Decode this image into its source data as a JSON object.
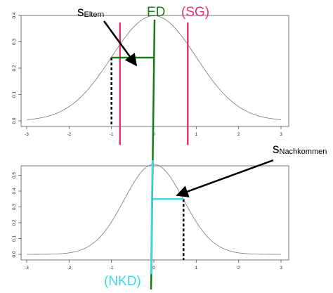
{
  "labels": {
    "ed": "ED",
    "sg": "(SG)",
    "nkd": "(NKD)",
    "s_eltern_main": "s",
    "s_eltern_sub": "Eltern",
    "s_nachkommen_main": "s",
    "s_nachkommen_sub": "Nachkommen"
  },
  "colors": {
    "ed": "#1a7a1a",
    "sg": "#e8336f",
    "nkd": "#3dd9e8",
    "curve": "#777777",
    "frame": "#555555",
    "arrow": "#000000"
  },
  "chart_data": [
    {
      "type": "line",
      "name": "top",
      "title": "",
      "xlabel": "",
      "ylabel": "",
      "x_ticks": [
        -3,
        -2,
        -1,
        0,
        1,
        2,
        3
      ],
      "y_ticks": [
        0.0,
        0.1,
        0.2,
        0.3,
        0.4
      ],
      "y_tick_labels": [
        "0.0",
        "0.1",
        "0.2",
        "0.3",
        "0.4"
      ],
      "xlim": [
        -3.0,
        3.0
      ],
      "ylim": [
        0.0,
        0.4
      ],
      "curve": {
        "mean": 0,
        "sd": 1
      },
      "truncation_lines_x": [
        -0.8,
        0.8
      ],
      "mean_line_x": 0,
      "selected_mean_x": -1.0,
      "selected_level_y": 0.24
    },
    {
      "type": "line",
      "name": "bottom",
      "title": "",
      "xlabel": "",
      "ylabel": "",
      "x_ticks": [
        -3,
        -2,
        -1,
        0,
        1,
        2,
        3
      ],
      "y_ticks": [
        0.0,
        0.1,
        0.2,
        0.3,
        0.4,
        0.5
      ],
      "y_tick_labels": [
        "0.0",
        "0.1",
        "0.2",
        "0.3",
        "0.4",
        "0.5"
      ],
      "xlim": [
        -3.0,
        3.0
      ],
      "ylim": [
        0.0,
        0.56
      ],
      "curve": {
        "mean": 0,
        "sd": 0.7
      },
      "offspring_mean_x": -0.05,
      "offspring_value_x": 0.7,
      "offspring_level_y": 0.35
    }
  ]
}
